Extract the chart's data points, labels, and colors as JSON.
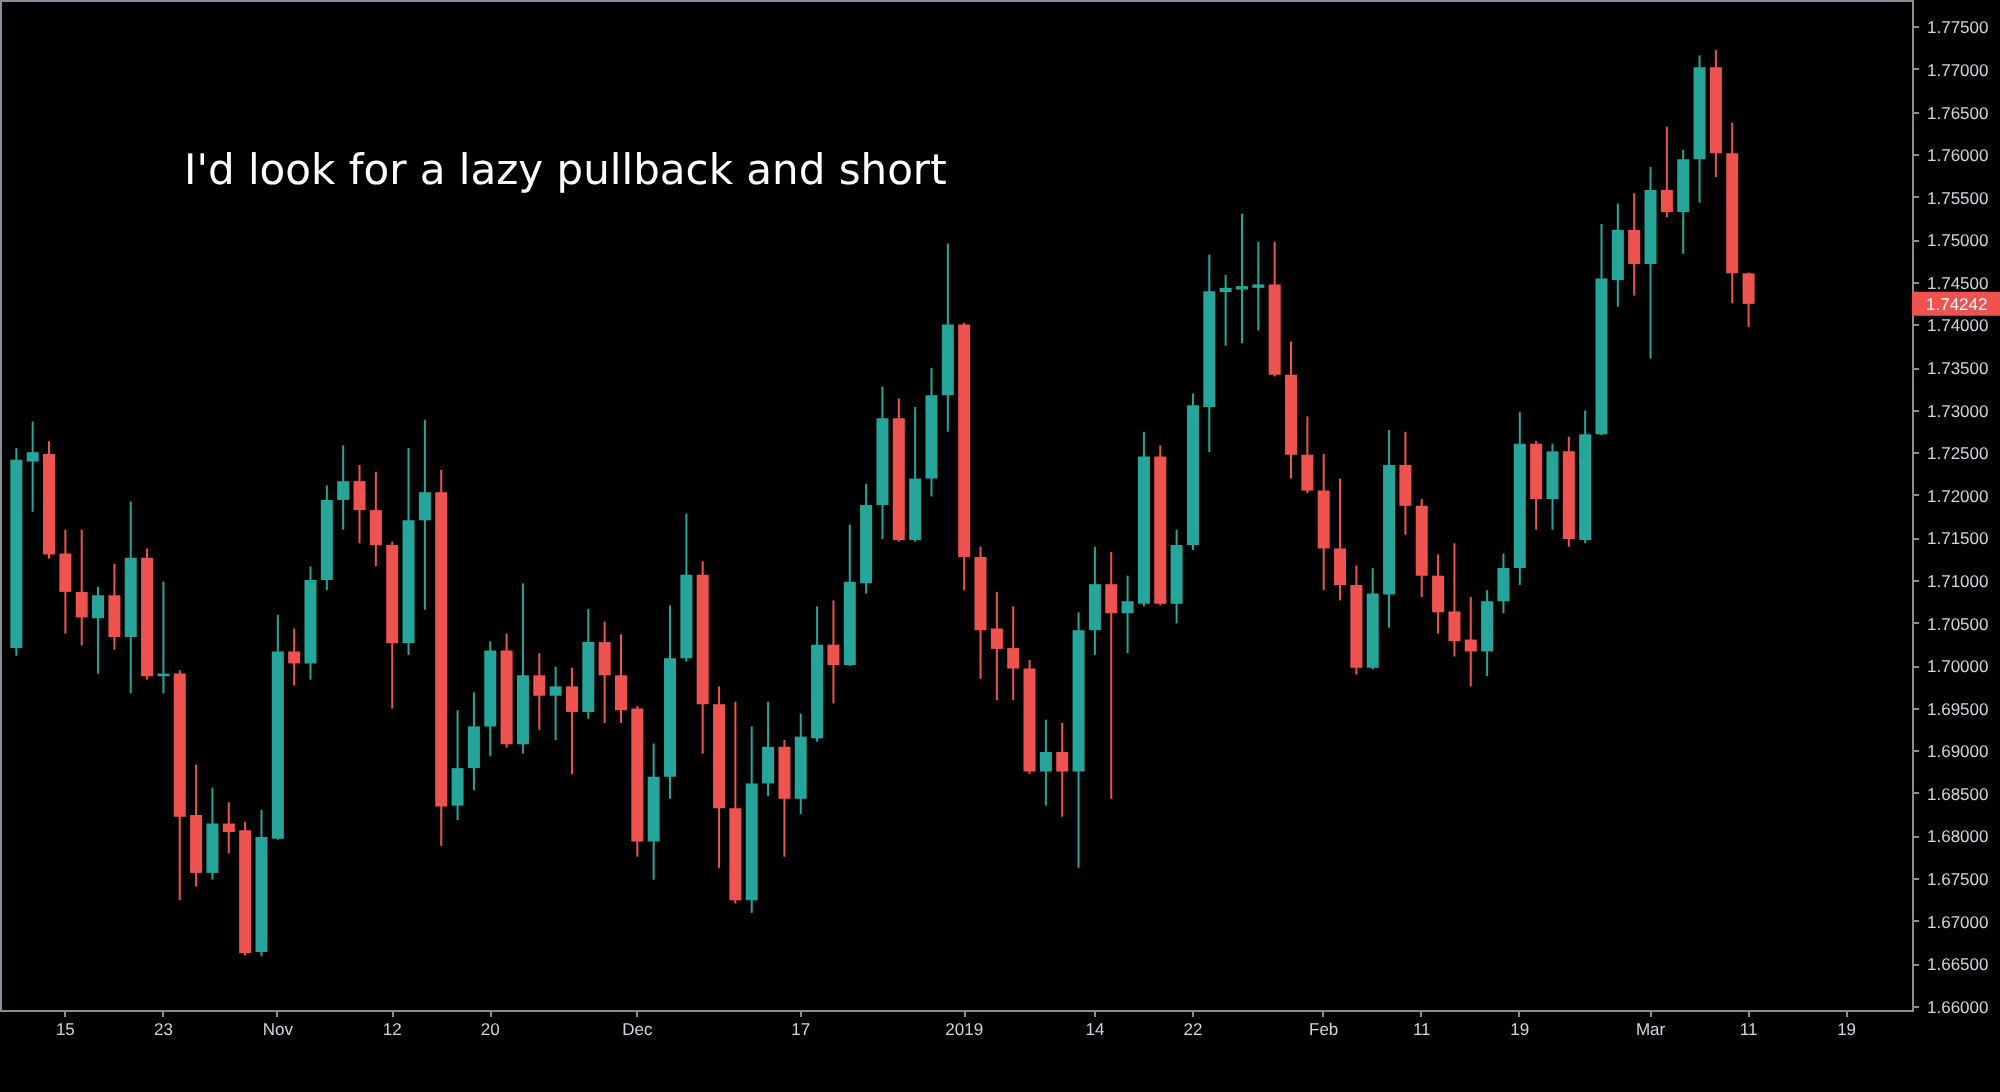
{
  "chart_data": {
    "type": "candlestick",
    "annotations": [
      "I'd look for a lazy pullback and short",
      "1.74242"
    ],
    "categories": [
      null,
      null,
      null,
      "15",
      null,
      null,
      null,
      null,
      null,
      "23",
      null,
      null,
      null,
      null,
      null,
      null,
      "Nov",
      null,
      null,
      null,
      null,
      null,
      null,
      "12",
      null,
      null,
      null,
      null,
      null,
      "20",
      null,
      null,
      null,
      null,
      null,
      null,
      null,
      null,
      "Dec",
      null,
      null,
      null,
      null,
      null,
      null,
      null,
      null,
      null,
      "17",
      null,
      null,
      null,
      null,
      null,
      null,
      null,
      null,
      null,
      "2019",
      null,
      null,
      null,
      null,
      null,
      null,
      null,
      "14",
      null,
      null,
      null,
      null,
      null,
      "22",
      null,
      null,
      null,
      null,
      null,
      null,
      null,
      "Feb",
      null,
      null,
      null,
      null,
      null,
      "11",
      null,
      null,
      null,
      null,
      null,
      "19",
      null,
      null,
      null,
      null,
      null,
      null,
      null,
      "Mar",
      null,
      null,
      null,
      null,
      null,
      "11",
      null,
      null,
      null,
      null,
      null,
      "19",
      null,
      null,
      null
    ],
    "ohlc": [
      [
        1.702,
        1.7255,
        1.7011,
        1.7241
      ],
      [
        1.7239,
        1.7286,
        1.718,
        1.725
      ],
      [
        1.7248,
        1.7263,
        1.7125,
        1.713
      ],
      [
        1.7131,
        1.7159,
        1.7037,
        1.7086
      ],
      [
        1.7086,
        1.7159,
        1.7023,
        1.7056
      ],
      [
        1.7055,
        1.7092,
        1.699,
        1.7082
      ],
      [
        1.7082,
        1.7119,
        1.7018,
        1.7033
      ],
      [
        1.7033,
        1.7192,
        1.6967,
        1.7126
      ],
      [
        1.7126,
        1.7137,
        1.6983,
        1.6987
      ],
      [
        1.6987,
        1.7098,
        1.6967,
        1.699
      ],
      [
        1.699,
        1.6994,
        1.6724,
        1.6822
      ],
      [
        1.6824,
        1.6883,
        1.674,
        1.6756
      ],
      [
        1.6756,
        1.6856,
        1.6748,
        1.6814
      ],
      [
        1.6814,
        1.6839,
        1.6779,
        1.6804
      ],
      [
        1.6806,
        1.6816,
        1.6659,
        1.6662
      ],
      [
        1.6663,
        1.683,
        1.6658,
        1.6798
      ],
      [
        1.6796,
        1.7059,
        1.6795,
        1.7016
      ],
      [
        1.7016,
        1.7043,
        1.6976,
        1.7002
      ],
      [
        1.7002,
        1.7116,
        1.6983,
        1.71
      ],
      [
        1.71,
        1.7211,
        1.7088,
        1.7194
      ],
      [
        1.7194,
        1.7258,
        1.7159,
        1.7216
      ],
      [
        1.7216,
        1.7235,
        1.7143,
        1.7182
      ],
      [
        1.7182,
        1.7227,
        1.7116,
        1.7141
      ],
      [
        1.7141,
        1.7145,
        1.6949,
        1.7026
      ],
      [
        1.7026,
        1.7255,
        1.7012,
        1.717
      ],
      [
        1.717,
        1.7288,
        1.7065,
        1.7203
      ],
      [
        1.7203,
        1.7229,
        1.6788,
        1.6834
      ],
      [
        1.6835,
        1.6947,
        1.6818,
        1.6879
      ],
      [
        1.6879,
        1.6968,
        1.6853,
        1.6928
      ],
      [
        1.6928,
        1.7028,
        1.6893,
        1.7017
      ],
      [
        1.7017,
        1.7037,
        1.6903,
        1.6907
      ],
      [
        1.6907,
        1.7096,
        1.6896,
        1.6988
      ],
      [
        1.6988,
        1.7014,
        1.6924,
        1.6964
      ],
      [
        1.6964,
        1.6998,
        1.6912,
        1.6975
      ],
      [
        1.6975,
        1.6997,
        1.6872,
        1.6945
      ],
      [
        1.6945,
        1.7066,
        1.6937,
        1.7027
      ],
      [
        1.7027,
        1.7051,
        1.6932,
        1.6988
      ],
      [
        1.6988,
        1.7036,
        1.6932,
        1.6947
      ],
      [
        1.6949,
        1.6952,
        1.6775,
        1.6793
      ],
      [
        1.6793,
        1.6908,
        1.6748,
        1.6869
      ],
      [
        1.6869,
        1.707,
        1.6843,
        1.7008
      ],
      [
        1.7008,
        1.7178,
        1.7004,
        1.7106
      ],
      [
        1.7106,
        1.7122,
        1.6896,
        1.6954
      ],
      [
        1.6954,
        1.6975,
        1.6762,
        1.6832
      ],
      [
        1.6832,
        1.6957,
        1.672,
        1.6724
      ],
      [
        1.6724,
        1.6928,
        1.6709,
        1.6861
      ],
      [
        1.6861,
        1.6957,
        1.6846,
        1.6904
      ],
      [
        1.6904,
        1.6912,
        1.6775,
        1.6843
      ],
      [
        1.6843,
        1.6943,
        1.6825,
        1.6916
      ],
      [
        1.6914,
        1.7069,
        1.691,
        1.7024
      ],
      [
        1.7024,
        1.7076,
        1.6955,
        1.7
      ],
      [
        1.7,
        1.7165,
        1.6999,
        1.7098
      ],
      [
        1.7096,
        1.7213,
        1.7084,
        1.7188
      ],
      [
        1.7188,
        1.7327,
        1.7148,
        1.729
      ],
      [
        1.729,
        1.7313,
        1.7145,
        1.7147
      ],
      [
        1.7147,
        1.7303,
        1.7145,
        1.7219
      ],
      [
        1.7219,
        1.7349,
        1.7198,
        1.7317
      ],
      [
        1.7317,
        1.7495,
        1.7274,
        1.74
      ],
      [
        1.74,
        1.7402,
        1.7088,
        1.7127
      ],
      [
        1.7127,
        1.7139,
        1.6984,
        1.7041
      ],
      [
        1.7043,
        1.7086,
        1.6959,
        1.7019
      ],
      [
        1.702,
        1.7069,
        1.6959,
        1.6996
      ],
      [
        1.6996,
        1.7006,
        1.6872,
        1.6875
      ],
      [
        1.6875,
        1.6936,
        1.6835,
        1.6898
      ],
      [
        1.6898,
        1.6932,
        1.6822,
        1.6875
      ],
      [
        1.6875,
        1.7062,
        1.6762,
        1.7041
      ],
      [
        1.7041,
        1.7139,
        1.7012,
        1.7095
      ],
      [
        1.7095,
        1.7133,
        1.6843,
        1.7061
      ],
      [
        1.7061,
        1.7105,
        1.7014,
        1.7075
      ],
      [
        1.7072,
        1.7274,
        1.7069,
        1.7245
      ],
      [
        1.7245,
        1.7258,
        1.707,
        1.7072
      ],
      [
        1.7072,
        1.7159,
        1.7049,
        1.7141
      ],
      [
        1.7141,
        1.7319,
        1.7135,
        1.7305
      ],
      [
        1.7303,
        1.7482,
        1.725,
        1.7439
      ],
      [
        1.7438,
        1.7458,
        1.7375,
        1.7443
      ],
      [
        1.7441,
        1.753,
        1.7378,
        1.7445
      ],
      [
        1.7443,
        1.7497,
        1.7393,
        1.7447
      ],
      [
        1.7447,
        1.7497,
        1.7339,
        1.7341
      ],
      [
        1.7341,
        1.738,
        1.7219,
        1.7247
      ],
      [
        1.7247,
        1.7292,
        1.7202,
        1.7205
      ],
      [
        1.7205,
        1.7248,
        1.7088,
        1.7137
      ],
      [
        1.7137,
        1.7219,
        1.7076,
        1.7094
      ],
      [
        1.7094,
        1.7117,
        1.6989,
        1.6997
      ],
      [
        1.6997,
        1.7114,
        1.6995,
        1.7084
      ],
      [
        1.7083,
        1.7276,
        1.7044,
        1.7235
      ],
      [
        1.7235,
        1.7274,
        1.7153,
        1.7187
      ],
      [
        1.7187,
        1.7195,
        1.708,
        1.7105
      ],
      [
        1.7105,
        1.713,
        1.7037,
        1.7062
      ],
      [
        1.7063,
        1.7143,
        1.701,
        1.7028
      ],
      [
        1.703,
        1.708,
        1.6975,
        1.7016
      ],
      [
        1.7016,
        1.7088,
        1.6987,
        1.7075
      ],
      [
        1.7075,
        1.7131,
        1.7061,
        1.7114
      ],
      [
        1.7114,
        1.7297,
        1.7094,
        1.726
      ],
      [
        1.726,
        1.7263,
        1.7159,
        1.7195
      ],
      [
        1.7195,
        1.726,
        1.7159,
        1.7251
      ],
      [
        1.7251,
        1.7268,
        1.7139,
        1.7148
      ],
      [
        1.7147,
        1.7299,
        1.7143,
        1.7271
      ],
      [
        1.7271,
        1.7518,
        1.727,
        1.7454
      ],
      [
        1.7452,
        1.7542,
        1.7421,
        1.7511
      ],
      [
        1.7511,
        1.7554,
        1.7434,
        1.7471
      ],
      [
        1.7471,
        1.7585,
        1.736,
        1.7558
      ],
      [
        1.7558,
        1.7632,
        1.7526,
        1.7532
      ],
      [
        1.7532,
        1.7605,
        1.7483,
        1.7594
      ],
      [
        1.7594,
        1.7716,
        1.7543,
        1.7702
      ],
      [
        1.7702,
        1.7722,
        1.7573,
        1.7601
      ],
      [
        1.7601,
        1.7637,
        1.7425,
        1.746
      ],
      [
        1.746,
        1.7461,
        1.7397,
        1.74242
      ],
      null,
      null,
      null,
      null,
      null,
      null,
      null,
      null,
      null
    ],
    "colors": [
      "#26a69a",
      "#26a69a",
      "#ef5350",
      "#ef5350",
      "#ef5350",
      "#26a69a",
      "#ef5350",
      "#26a69a",
      "#ef5350",
      "#26a69a",
      "#ef5350",
      "#ef5350",
      "#26a69a",
      "#ef5350",
      "#ef5350",
      "#26a69a",
      "#26a69a",
      "#ef5350",
      "#26a69a",
      "#26a69a",
      "#26a69a",
      "#ef5350",
      "#ef5350",
      "#ef5350",
      "#26a69a",
      "#26a69a",
      "#ef5350",
      "#26a69a",
      "#26a69a",
      "#26a69a",
      "#ef5350",
      "#26a69a",
      "#ef5350",
      "#26a69a",
      "#ef5350",
      "#26a69a",
      "#ef5350",
      "#ef5350",
      "#ef5350",
      "#26a69a",
      "#26a69a",
      "#26a69a",
      "#ef5350",
      "#ef5350",
      "#ef5350",
      "#26a69a",
      "#26a69a",
      "#ef5350",
      "#26a69a",
      "#26a69a",
      "#ef5350",
      "#26a69a",
      "#26a69a",
      "#26a69a",
      "#ef5350",
      "#26a69a",
      "#26a69a",
      "#26a69a",
      "#ef5350",
      "#ef5350",
      "#ef5350",
      "#ef5350",
      "#ef5350",
      "#26a69a",
      "#ef5350",
      "#26a69a",
      "#26a69a",
      "#ef5350",
      "#26a69a",
      "#26a69a",
      "#ef5350",
      "#26a69a",
      "#26a69a",
      "#26a69a",
      "#26a69a",
      "#26a69a",
      "#26a69a",
      "#ef5350",
      "#ef5350",
      "#ef5350",
      "#ef5350",
      "#ef5350",
      "#ef5350",
      "#26a69a",
      "#26a69a",
      "#ef5350",
      "#ef5350",
      "#ef5350",
      "#ef5350",
      "#ef5350",
      "#26a69a",
      "#26a69a",
      "#26a69a",
      "#ef5350",
      "#26a69a",
      "#ef5350",
      "#26a69a",
      "#26a69a",
      "#26a69a",
      "#ef5350",
      "#26a69a",
      "#ef5350",
      "#26a69a",
      "#26a69a",
      "#ef5350",
      "#ef5350",
      "#ef5350",
      null,
      null,
      null,
      null,
      null,
      null,
      null,
      null,
      null
    ],
    "ylim": [
      1.6595,
      1.7781
    ],
    "yticks": [
      {
        "value": 1.66,
        "label": "1.66000"
      },
      {
        "value": 1.665,
        "label": "1.66500"
      },
      {
        "value": 1.67,
        "label": "1.67000"
      },
      {
        "value": 1.675,
        "label": "1.67500"
      },
      {
        "value": 1.68,
        "label": "1.68000"
      },
      {
        "value": 1.685,
        "label": "1.68500"
      },
      {
        "value": 1.69,
        "label": "1.69000"
      },
      {
        "value": 1.695,
        "label": "1.69500"
      },
      {
        "value": 1.7,
        "label": "1.70000"
      },
      {
        "value": 1.705,
        "label": "1.70500"
      },
      {
        "value": 1.71,
        "label": "1.71000"
      },
      {
        "value": 1.715,
        "label": "1.71500"
      },
      {
        "value": 1.72,
        "label": "1.72000"
      },
      {
        "value": 1.725,
        "label": "1.72500"
      },
      {
        "value": 1.73,
        "label": "1.73000"
      },
      {
        "value": 1.735,
        "label": "1.73500"
      },
      {
        "value": 1.74,
        "label": "1.74000"
      },
      {
        "value": 1.745,
        "label": "1.74500"
      },
      {
        "value": 1.75,
        "label": "1.75000"
      },
      {
        "value": 1.755,
        "label": "1.75500"
      },
      {
        "value": 1.76,
        "label": "1.76000"
      },
      {
        "value": 1.765,
        "label": "1.76500"
      },
      {
        "value": 1.77,
        "label": "1.77000"
      },
      {
        "value": 1.775,
        "label": "1.77500"
      }
    ]
  }
}
